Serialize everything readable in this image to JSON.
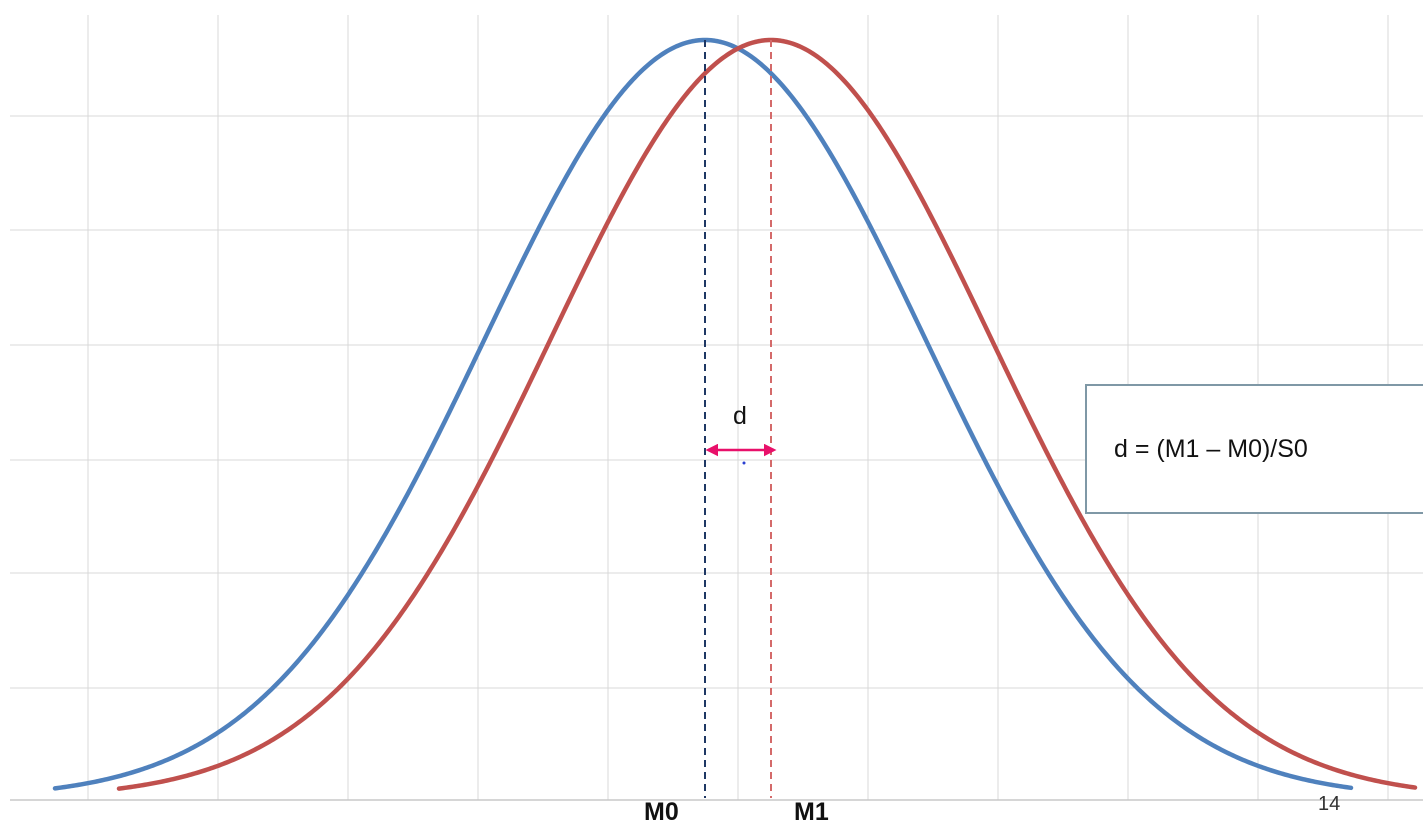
{
  "diagram": {
    "curves": [
      {
        "id": "baseline",
        "mean": 0.0,
        "sd": 1.0,
        "color": "#4f81bd"
      },
      {
        "id": "treatment",
        "mean": 0.3,
        "sd": 1.0,
        "color": "#c0504d"
      }
    ],
    "mean_markers": [
      {
        "label": "M0",
        "color": "#1f3864"
      },
      {
        "label": "M1",
        "color": "#d46a6a"
      }
    ],
    "effect": {
      "label": "d",
      "arrow_color": "#e8106a"
    },
    "formula": "d = (M1 – M0)/S0",
    "page_number": "14",
    "grid_color": "#d9d9d9"
  }
}
